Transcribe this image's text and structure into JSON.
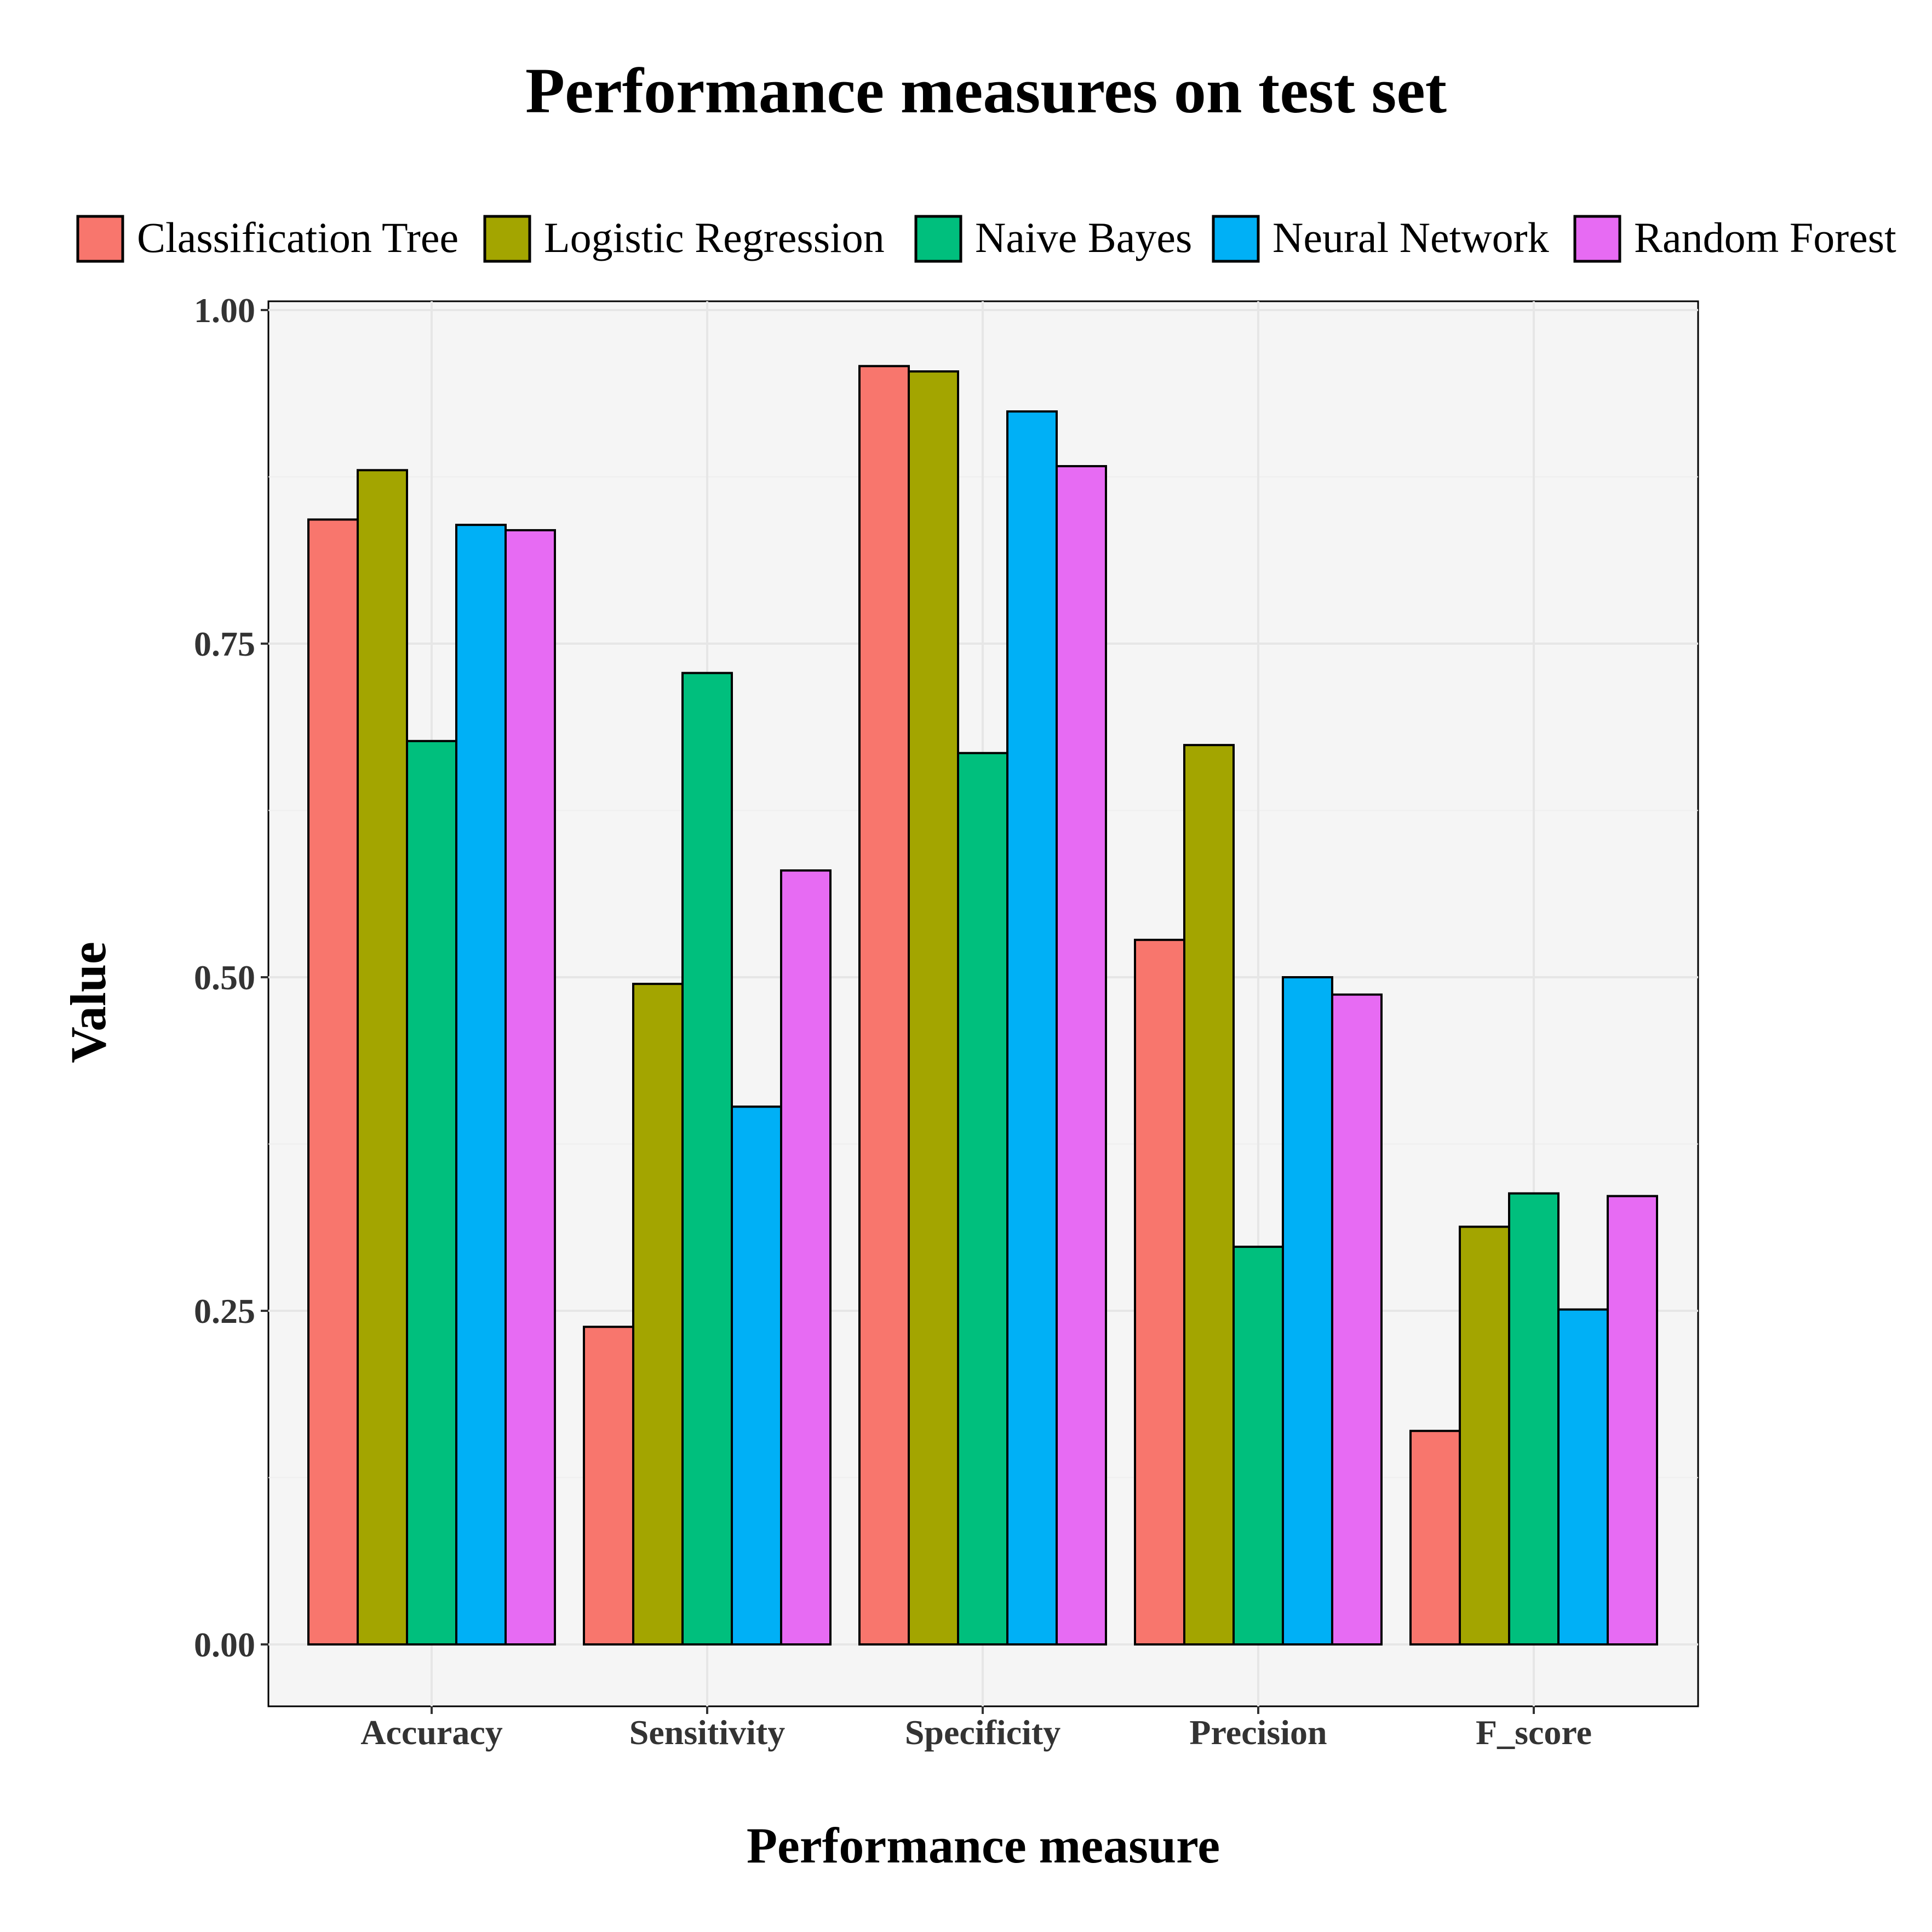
{
  "chart_data": {
    "type": "bar",
    "title": "Performance measures on test set",
    "xlabel": "Performance measure",
    "ylabel": "Value",
    "ylim": [
      -0.05,
      1.0
    ],
    "yticks": [
      "0.00",
      "0.25",
      "0.50",
      "0.75",
      "1.00"
    ],
    "ytick_values": [
      0,
      0.25,
      0.5,
      0.75,
      1.0
    ],
    "categories": [
      "Accuracy",
      "Sensitivity",
      "Specificity",
      "Precision",
      "F_score"
    ],
    "legend_position": "top",
    "grid": true,
    "series": [
      {
        "name": "Classification Tree",
        "color": "#F8766D",
        "values": [
          0.843,
          0.238,
          0.958,
          0.528,
          0.16
        ]
      },
      {
        "name": "Logistic Regression",
        "color": "#A3A500",
        "values": [
          0.88,
          0.495,
          0.954,
          0.674,
          0.313
        ]
      },
      {
        "name": "Naive Bayes",
        "color": "#00BF7D",
        "values": [
          0.677,
          0.728,
          0.668,
          0.298,
          0.338
        ]
      },
      {
        "name": "Neural Network",
        "color": "#00B0F6",
        "values": [
          0.839,
          0.403,
          0.924,
          0.5,
          0.251
        ]
      },
      {
        "name": "Random Forest",
        "color": "#E76BF3",
        "values": [
          0.835,
          0.58,
          0.883,
          0.487,
          0.336
        ]
      }
    ]
  }
}
